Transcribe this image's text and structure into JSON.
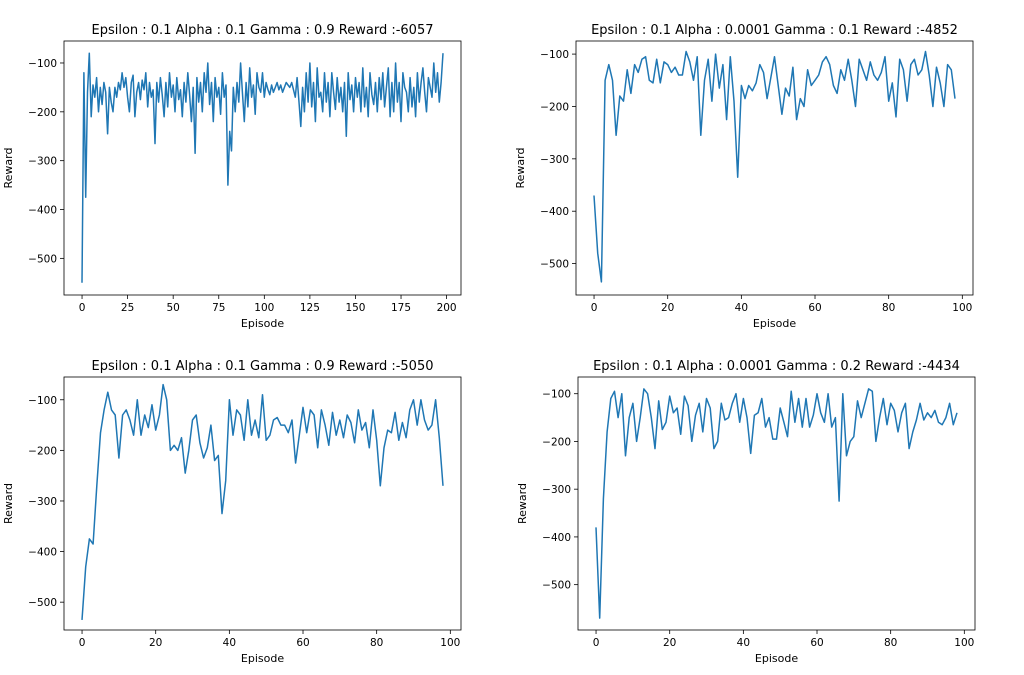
{
  "chart_data": [
    {
      "type": "line",
      "title": "Epsilon : 0.1 Alpha : 0.1 Gamma : 0.9 Reward :-6057",
      "xlabel": "Episode",
      "ylabel": "Reward",
      "xlim": [
        -9.9,
        207.9
      ],
      "ylim": [
        -575,
        -55
      ],
      "xticks": [
        0,
        25,
        50,
        75,
        100,
        125,
        150,
        175,
        200
      ],
      "yticks": [
        -500,
        -400,
        -300,
        -200,
        -100
      ],
      "line_color": "#1f77b4",
      "grid": false,
      "series": [
        {
          "x": [
            0,
            1,
            2,
            3,
            4,
            5,
            6,
            7,
            8,
            9,
            10,
            11,
            12,
            13,
            14,
            15,
            16,
            17,
            18,
            19,
            20,
            21,
            22,
            23,
            24,
            25,
            26,
            27,
            28,
            29,
            30,
            31,
            32,
            33,
            34,
            35,
            36,
            37,
            38,
            39,
            40,
            41,
            42,
            43,
            44,
            45,
            46,
            47,
            48,
            49,
            50,
            51,
            52,
            53,
            54,
            55,
            56,
            57,
            58,
            59,
            60,
            61,
            62,
            63,
            64,
            65,
            66,
            67,
            68,
            69,
            70,
            71,
            72,
            73,
            74,
            75,
            76,
            77,
            78,
            79,
            80,
            81,
            82,
            83,
            84,
            85,
            86,
            87,
            88,
            89,
            90,
            91,
            92,
            93,
            94,
            95,
            96,
            97,
            98,
            99,
            100,
            101,
            102,
            103,
            104,
            105,
            106,
            107,
            108,
            109,
            110,
            111,
            112,
            113,
            114,
            115,
            116,
            117,
            118,
            119,
            120,
            121,
            122,
            123,
            124,
            125,
            126,
            127,
            128,
            129,
            130,
            131,
            132,
            133,
            134,
            135,
            136,
            137,
            138,
            139,
            140,
            141,
            142,
            143,
            144,
            145,
            146,
            147,
            148,
            149,
            150,
            151,
            152,
            153,
            154,
            155,
            156,
            157,
            158,
            159,
            160,
            161,
            162,
            163,
            164,
            165,
            166,
            167,
            168,
            169,
            170,
            171,
            172,
            173,
            174,
            175,
            176,
            177,
            178,
            179,
            180,
            181,
            182,
            183,
            184,
            185,
            186,
            187,
            188,
            189,
            190,
            191,
            192,
            193,
            194,
            195,
            196,
            197,
            198
          ],
          "y": [
            -550,
            -120,
            -375,
            -160,
            -80,
            -210,
            -145,
            -170,
            -130,
            -200,
            -150,
            -185,
            -140,
            -160,
            -245,
            -150,
            -180,
            -200,
            -150,
            -170,
            -140,
            -155,
            -120,
            -150,
            -130,
            -170,
            -200,
            -140,
            -125,
            -210,
            -160,
            -140,
            -175,
            -135,
            -155,
            -120,
            -190,
            -140,
            -170,
            -155,
            -265,
            -140,
            -180,
            -130,
            -165,
            -210,
            -140,
            -190,
            -120,
            -170,
            -145,
            -200,
            -130,
            -175,
            -155,
            -210,
            -140,
            -180,
            -120,
            -165,
            -220,
            -150,
            -285,
            -130,
            -180,
            -140,
            -200,
            -120,
            -160,
            -100,
            -185,
            -140,
            -220,
            -130,
            -170,
            -150,
            -205,
            -120,
            -170,
            -145,
            -350,
            -240,
            -280,
            -150,
            -200,
            -140,
            -180,
            -100,
            -160,
            -220,
            -140,
            -190,
            -110,
            -170,
            -145,
            -205,
            -120,
            -150,
            -160,
            -120,
            -170,
            -140,
            -155,
            -165,
            -145,
            -160,
            -150,
            -140,
            -155,
            -145,
            -160,
            -150,
            -140,
            -145,
            -150,
            -140,
            -155,
            -170,
            -130,
            -180,
            -230,
            -150,
            -200,
            -120,
            -180,
            -100,
            -190,
            -140,
            -220,
            -110,
            -170,
            -160,
            -200,
            -120,
            -180,
            -140,
            -210,
            -120,
            -160,
            -195,
            -130,
            -180,
            -150,
            -200,
            -140,
            -250,
            -120,
            -175,
            -145,
            -200,
            -130,
            -170,
            -140,
            -200,
            -110,
            -190,
            -150,
            -210,
            -120,
            -165,
            -185,
            -140,
            -200,
            -130,
            -175,
            -120,
            -190,
            -150,
            -110,
            -210,
            -140,
            -200,
            -100,
            -180,
            -140,
            -220,
            -120,
            -150,
            -160,
            -200,
            -130,
            -190,
            -150,
            -210,
            -120,
            -180,
            -140,
            -110,
            -160,
            -200,
            -130,
            -150,
            -170,
            -100,
            -160,
            -120,
            -180,
            -140,
            -80
          ]
        }
      ]
    },
    {
      "type": "line",
      "title": "Epsilon : 0.1 Alpha : 0.0001 Gamma : 0.1 Reward :-4852",
      "xlabel": "Episode",
      "ylabel": "Reward",
      "xlim": [
        -4.9,
        102.9
      ],
      "ylim": [
        -560,
        -75
      ],
      "xticks": [
        0,
        20,
        40,
        60,
        80,
        100
      ],
      "yticks": [
        -500,
        -400,
        -300,
        -200,
        -100
      ],
      "line_color": "#1f77b4",
      "grid": false,
      "series": [
        {
          "x": [
            0,
            1,
            2,
            3,
            4,
            5,
            6,
            7,
            8,
            9,
            10,
            11,
            12,
            13,
            14,
            15,
            16,
            17,
            18,
            19,
            20,
            21,
            22,
            23,
            24,
            25,
            26,
            27,
            28,
            29,
            30,
            31,
            32,
            33,
            34,
            35,
            36,
            37,
            38,
            39,
            40,
            41,
            42,
            43,
            44,
            45,
            46,
            47,
            48,
            49,
            50,
            51,
            52,
            53,
            54,
            55,
            56,
            57,
            58,
            59,
            60,
            61,
            62,
            63,
            64,
            65,
            66,
            67,
            68,
            69,
            70,
            71,
            72,
            73,
            74,
            75,
            76,
            77,
            78,
            79,
            80,
            81,
            82,
            83,
            84,
            85,
            86,
            87,
            88,
            89,
            90,
            91,
            92,
            93,
            94,
            95,
            96,
            97,
            98
          ],
          "y": [
            -370,
            -480,
            -535,
            -150,
            -120,
            -150,
            -255,
            -180,
            -190,
            -130,
            -175,
            -120,
            -135,
            -110,
            -105,
            -150,
            -155,
            -110,
            -155,
            -115,
            -120,
            -135,
            -125,
            -140,
            -140,
            -95,
            -115,
            -150,
            -105,
            -255,
            -150,
            -110,
            -190,
            -100,
            -165,
            -120,
            -225,
            -105,
            -190,
            -335,
            -160,
            -185,
            -160,
            -170,
            -155,
            -120,
            -135,
            -185,
            -145,
            -105,
            -160,
            -215,
            -165,
            -180,
            -125,
            -225,
            -185,
            -200,
            -130,
            -160,
            -150,
            -140,
            -115,
            -105,
            -120,
            -160,
            -175,
            -130,
            -150,
            -110,
            -150,
            -200,
            -110,
            -130,
            -150,
            -115,
            -140,
            -150,
            -135,
            -105,
            -190,
            -155,
            -220,
            -110,
            -130,
            -190,
            -120,
            -110,
            -140,
            -130,
            -95,
            -140,
            -200,
            -125,
            -155,
            -200,
            -120,
            -130,
            -185
          ]
        }
      ]
    },
    {
      "type": "line",
      "title": "Epsilon : 0.1 Alpha : 0.1 Gamma : 0.9 Reward :-5050",
      "xlabel": "Episode",
      "ylabel": "Reward",
      "xlim": [
        -4.9,
        102.9
      ],
      "ylim": [
        -555,
        -55
      ],
      "xticks": [
        0,
        20,
        40,
        60,
        80,
        100
      ],
      "yticks": [
        -500,
        -400,
        -300,
        -200,
        -100
      ],
      "line_color": "#1f77b4",
      "grid": false,
      "series": [
        {
          "x": [
            0,
            1,
            2,
            3,
            4,
            5,
            6,
            7,
            8,
            9,
            10,
            11,
            12,
            13,
            14,
            15,
            16,
            17,
            18,
            19,
            20,
            21,
            22,
            23,
            24,
            25,
            26,
            27,
            28,
            29,
            30,
            31,
            32,
            33,
            34,
            35,
            36,
            37,
            38,
            39,
            40,
            41,
            42,
            43,
            44,
            45,
            46,
            47,
            48,
            49,
            50,
            51,
            52,
            53,
            54,
            55,
            56,
            57,
            58,
            59,
            60,
            61,
            62,
            63,
            64,
            65,
            66,
            67,
            68,
            69,
            70,
            71,
            72,
            73,
            74,
            75,
            76,
            77,
            78,
            79,
            80,
            81,
            82,
            83,
            84,
            85,
            86,
            87,
            88,
            89,
            90,
            91,
            92,
            93,
            94,
            95,
            96,
            97,
            98
          ],
          "y": [
            -535,
            -430,
            -375,
            -385,
            -270,
            -165,
            -120,
            -85,
            -120,
            -130,
            -215,
            -130,
            -120,
            -140,
            -170,
            -100,
            -170,
            -130,
            -155,
            -110,
            -160,
            -130,
            -70,
            -100,
            -200,
            -190,
            -200,
            -175,
            -245,
            -200,
            -140,
            -130,
            -185,
            -215,
            -195,
            -150,
            -220,
            -210,
            -325,
            -260,
            -100,
            -170,
            -120,
            -130,
            -180,
            -100,
            -170,
            -140,
            -175,
            -90,
            -180,
            -170,
            -140,
            -135,
            -150,
            -150,
            -165,
            -140,
            -225,
            -170,
            -115,
            -165,
            -120,
            -130,
            -195,
            -120,
            -150,
            -190,
            -125,
            -170,
            -140,
            -175,
            -130,
            -145,
            -185,
            -120,
            -160,
            -145,
            -195,
            -120,
            -180,
            -270,
            -195,
            -160,
            -165,
            -125,
            -180,
            -145,
            -175,
            -120,
            -100,
            -150,
            -100,
            -140,
            -160,
            -150,
            -100,
            -175,
            -270
          ]
        }
      ]
    },
    {
      "type": "line",
      "title": "Epsilon : 0.1 Alpha : 0.0001 Gamma : 0.2 Reward :-4434",
      "xlabel": "Episode",
      "ylabel": "Reward",
      "xlim": [
        -4.9,
        102.9
      ],
      "ylim": [
        -595,
        -65
      ],
      "xticks": [
        0,
        20,
        40,
        60,
        80,
        100
      ],
      "yticks": [
        -500,
        -400,
        -300,
        -200,
        -100
      ],
      "line_color": "#1f77b4",
      "grid": false,
      "series": [
        {
          "x": [
            0,
            1,
            2,
            3,
            4,
            5,
            6,
            7,
            8,
            9,
            10,
            11,
            12,
            13,
            14,
            15,
            16,
            17,
            18,
            19,
            20,
            21,
            22,
            23,
            24,
            25,
            26,
            27,
            28,
            29,
            30,
            31,
            32,
            33,
            34,
            35,
            36,
            37,
            38,
            39,
            40,
            41,
            42,
            43,
            44,
            45,
            46,
            47,
            48,
            49,
            50,
            51,
            52,
            53,
            54,
            55,
            56,
            57,
            58,
            59,
            60,
            61,
            62,
            63,
            64,
            65,
            66,
            67,
            68,
            69,
            70,
            71,
            72,
            73,
            74,
            75,
            76,
            77,
            78,
            79,
            80,
            81,
            82,
            83,
            84,
            85,
            86,
            87,
            88,
            89,
            90,
            91,
            92,
            93,
            94,
            95,
            96,
            97,
            98
          ],
          "y": [
            -380,
            -570,
            -320,
            -180,
            -110,
            -95,
            -150,
            -100,
            -230,
            -150,
            -120,
            -200,
            -150,
            -90,
            -100,
            -150,
            -215,
            -115,
            -175,
            -160,
            -105,
            -140,
            -130,
            -185,
            -105,
            -125,
            -200,
            -145,
            -120,
            -180,
            -110,
            -130,
            -215,
            -200,
            -120,
            -155,
            -150,
            -120,
            -100,
            -160,
            -110,
            -150,
            -225,
            -145,
            -140,
            -110,
            -170,
            -150,
            -195,
            -195,
            -130,
            -160,
            -190,
            -95,
            -160,
            -110,
            -170,
            -110,
            -170,
            -145,
            -100,
            -140,
            -160,
            -100,
            -170,
            -150,
            -325,
            -100,
            -230,
            -200,
            -190,
            -115,
            -150,
            -120,
            -90,
            -95,
            -200,
            -150,
            -110,
            -165,
            -120,
            -135,
            -180,
            -140,
            -120,
            -215,
            -180,
            -155,
            -120,
            -155,
            -140,
            -150,
            -135,
            -160,
            -165,
            -150,
            -120,
            -165,
            -140
          ]
        }
      ]
    }
  ]
}
